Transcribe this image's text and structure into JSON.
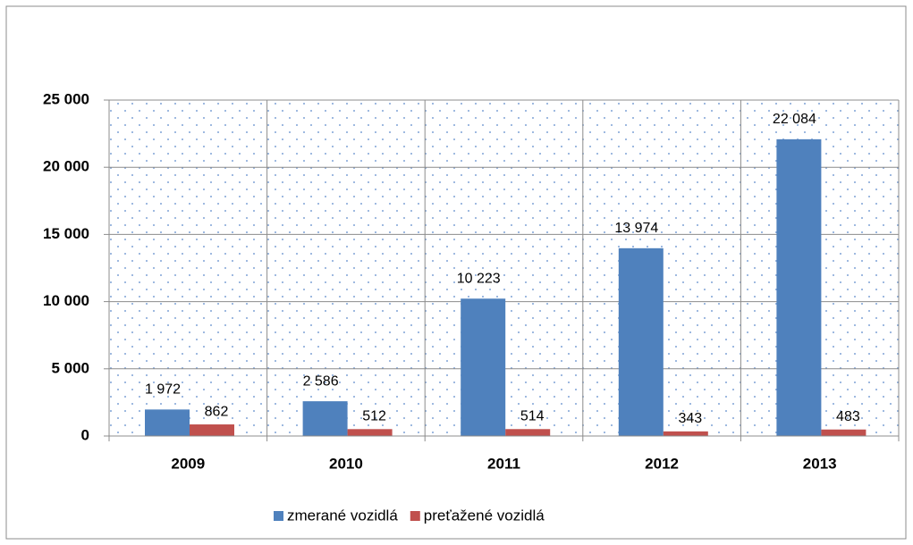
{
  "chart_data": {
    "type": "bar",
    "categories": [
      "2009",
      "2010",
      "2011",
      "2012",
      "2013"
    ],
    "series": [
      {
        "name": "zmerané vozidlá",
        "color": "#4f81bd",
        "values": [
          1972,
          2586,
          10223,
          13974,
          22084
        ],
        "value_labels": [
          "1 972",
          "2 586",
          "10 223",
          "13 974",
          "22 084"
        ]
      },
      {
        "name": "preťažené vozidlá",
        "color": "#c0504d",
        "values": [
          862,
          512,
          514,
          343,
          483
        ]
      }
    ],
    "ylim": [
      0,
      25000
    ],
    "yticks": [
      {
        "value": 0,
        "label": "0"
      },
      {
        "value": 5000,
        "label": "5 000"
      },
      {
        "value": 10000,
        "label": "10 000"
      },
      {
        "value": 15000,
        "label": "15 000"
      },
      {
        "value": 20000,
        "label": "20 000"
      },
      {
        "value": 25000,
        "label": "25 000"
      }
    ],
    "grid": true,
    "legend": "bottom"
  }
}
